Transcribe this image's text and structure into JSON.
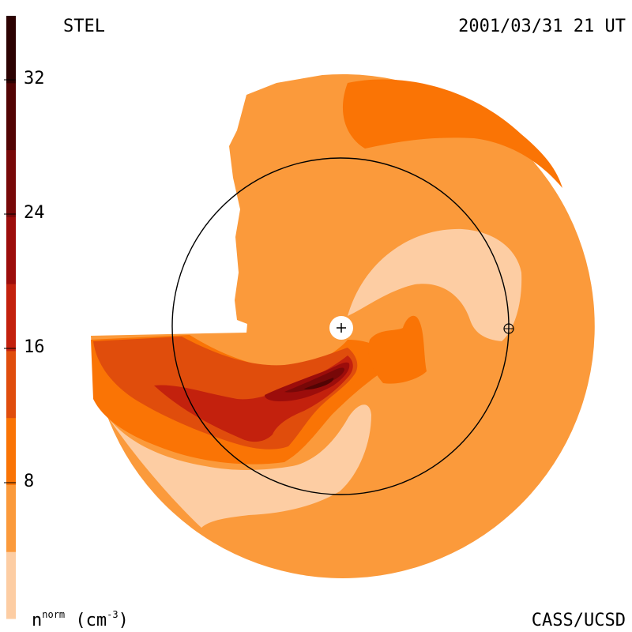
{
  "header": {
    "instrument": "STEL",
    "timestamp": "2001/03/31 21 UT"
  },
  "footer": {
    "credit": "CASS/UCSD",
    "unit_base": "n",
    "unit_sup": "norm",
    "unit_rest": " (cm",
    "unit_exp": "-3",
    "unit_close": ")"
  },
  "colors": {
    "background": "#ffffff",
    "earth_orbit": "#000000",
    "sun_marker": "#ffffff"
  },
  "chart_data": {
    "type": "heatmap",
    "title": "STEL",
    "subtitle": "2001/03/31 21 UT",
    "colorbar": {
      "label": "n^norm (cm^-3)",
      "min": 0,
      "max": 36,
      "ticks": [
        8,
        16,
        24,
        32
      ],
      "tick_labels": [
        "8",
        "16",
        "24",
        "32"
      ],
      "bins": [
        {
          "from": 0,
          "to": 4,
          "color": "#fdcda3"
        },
        {
          "from": 4,
          "to": 8,
          "color": "#fb9a3b"
        },
        {
          "from": 8,
          "to": 12,
          "color": "#fa7405"
        },
        {
          "from": 12,
          "to": 16,
          "color": "#e04d0c"
        },
        {
          "from": 16,
          "to": 20,
          "color": "#c3210d"
        },
        {
          "from": 20,
          "to": 24,
          "color": "#9c0d0b"
        },
        {
          "from": 24,
          "to": 28,
          "color": "#780808"
        },
        {
          "from": 28,
          "to": 32,
          "color": "#520404"
        },
        {
          "from": 32,
          "to": 36,
          "color": "#2c0202"
        }
      ]
    },
    "markers": [
      {
        "name": "sun",
        "symbol": "+"
      },
      {
        "name": "earth",
        "symbol": "⊕"
      }
    ]
  }
}
